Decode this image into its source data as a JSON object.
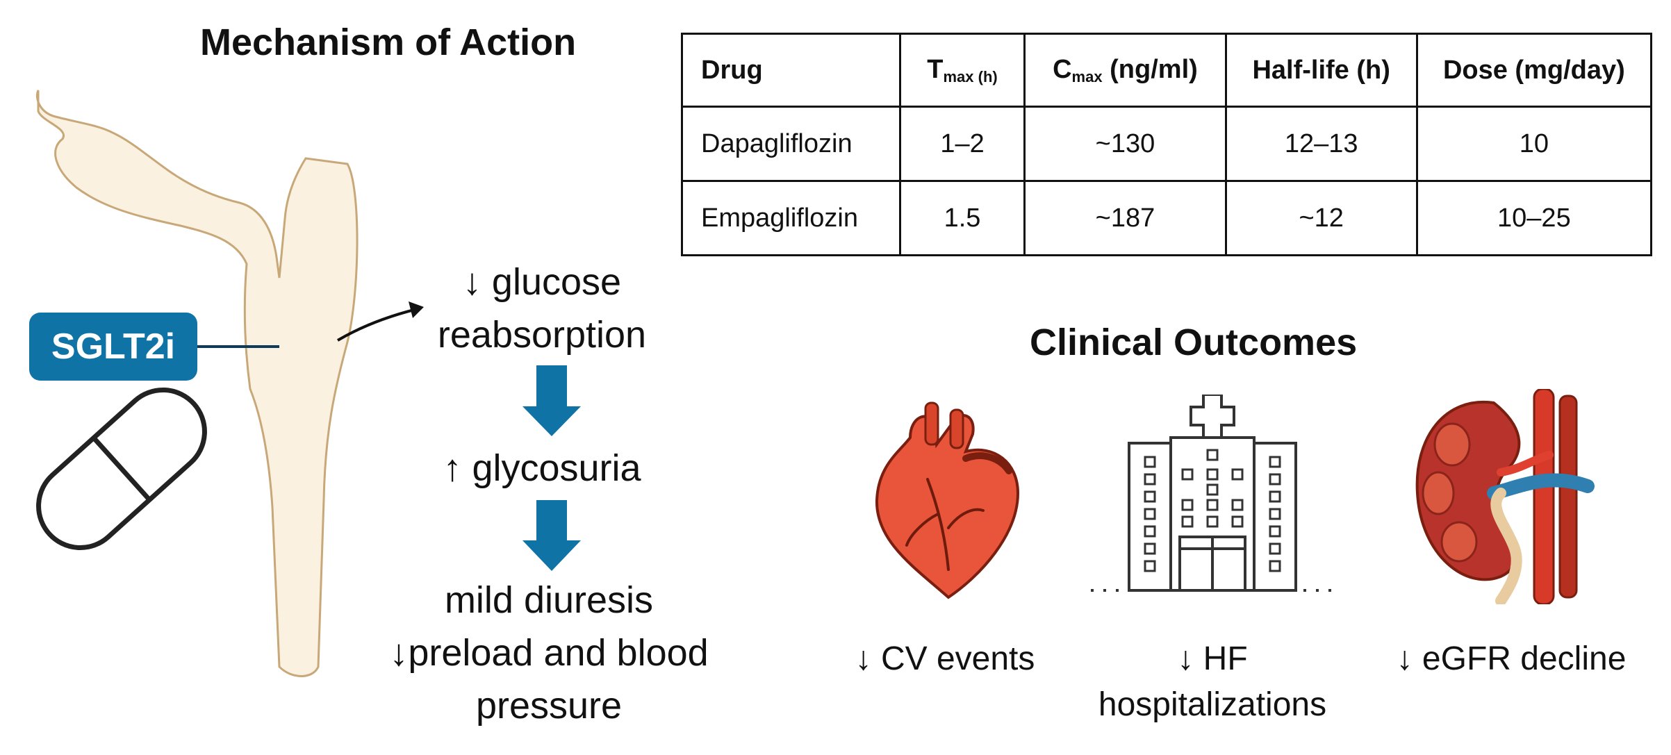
{
  "mechanism": {
    "title": "Mechanism of Action",
    "badge": "SGLT2i",
    "step1_line1": "↓ glucose",
    "step1_line2": "reabsorption",
    "step2": "↑ glycosuria",
    "step3_line1": "mild diuresis",
    "step3_line2": "↓preload and blood",
    "step3_line3": "pressure"
  },
  "table": {
    "headers": {
      "drug": "Drug",
      "tmax_main": "T",
      "tmax_sub": "max (h)",
      "cmax_main": "C",
      "cmax_sub": "max",
      "cmax_rest": " (ng/ml)",
      "half_life": "Half-life (h)",
      "dose": "Dose (mg/day)"
    },
    "rows": [
      {
        "drug": "Dapagliflozin",
        "tmax": "1–2",
        "cmax": "~130",
        "half_life": "12–13",
        "dose": "10"
      },
      {
        "drug": "Empagliflozin",
        "tmax": "1.5",
        "cmax": "~187",
        "half_life": "~12",
        "dose": "10–25"
      }
    ]
  },
  "outcomes": {
    "title": "Clinical Outcomes",
    "items": [
      {
        "icon": "heart-icon",
        "line1": "↓ CV events",
        "line2": ""
      },
      {
        "icon": "hospital-icon",
        "line1": "↓ HF",
        "line2": "hospitalizations"
      },
      {
        "icon": "kidney-icon",
        "line1": "↓ eGFR decline",
        "line2": ""
      }
    ]
  },
  "colors": {
    "arrow_blue": "#0f73a6",
    "tubule_fill": "#fbf1e0",
    "tubule_stroke": "#c8a878",
    "heart_red": "#e8553a",
    "kidney_red": "#b8332c",
    "vessel_blue": "#2f7fb0"
  }
}
